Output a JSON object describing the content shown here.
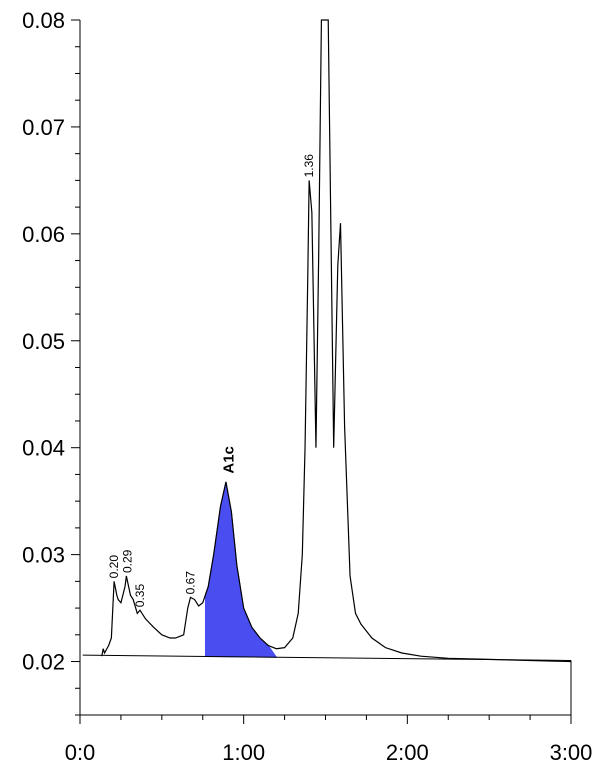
{
  "chart_data": {
    "type": "line",
    "title": "",
    "xlabel": "",
    "ylabel": "",
    "xlim_sec": [
      0,
      180
    ],
    "ylim": [
      0.015,
      0.08
    ],
    "x_ticks": [
      {
        "sec": 0,
        "label": "0:0"
      },
      {
        "sec": 60,
        "label": "1:00"
      },
      {
        "sec": 120,
        "label": "2:00"
      },
      {
        "sec": 180,
        "label": "3:00"
      }
    ],
    "y_ticks": [
      {
        "value": 0.02,
        "label": "0.02"
      },
      {
        "value": 0.03,
        "label": "0.03"
      },
      {
        "value": 0.04,
        "label": "0.04"
      },
      {
        "value": 0.05,
        "label": "0.05"
      },
      {
        "value": 0.06,
        "label": "0.06"
      },
      {
        "value": 0.07,
        "label": "0.07"
      },
      {
        "value": 0.08,
        "label": "0.08"
      }
    ],
    "baseline": [
      [
        1,
        0.0206
      ],
      [
        180,
        0.0201
      ]
    ],
    "series": [
      {
        "points": [
          [
            8,
            0.0205
          ],
          [
            8.5,
            0.0212
          ],
          [
            9,
            0.0208
          ],
          [
            10.5,
            0.0215
          ],
          [
            11.5,
            0.0222
          ],
          [
            12.5,
            0.0275
          ],
          [
            13.5,
            0.0262
          ],
          [
            14,
            0.0258
          ],
          [
            15,
            0.0255
          ],
          [
            16.5,
            0.027
          ],
          [
            17,
            0.028
          ],
          [
            18.5,
            0.0262
          ],
          [
            19.5,
            0.0258
          ],
          [
            21,
            0.0245
          ],
          [
            22,
            0.0248
          ],
          [
            24,
            0.024
          ],
          [
            27,
            0.0232
          ],
          [
            30,
            0.0225
          ],
          [
            33,
            0.0222
          ],
          [
            35,
            0.0222
          ],
          [
            38,
            0.0225
          ],
          [
            39.5,
            0.025
          ],
          [
            40.5,
            0.026
          ],
          [
            42,
            0.0258
          ],
          [
            43.5,
            0.0252
          ],
          [
            45,
            0.0255
          ],
          [
            47,
            0.027
          ],
          [
            49,
            0.03
          ],
          [
            51.5,
            0.0345
          ],
          [
            53.5,
            0.0368
          ],
          [
            55.5,
            0.034
          ],
          [
            57.5,
            0.029
          ],
          [
            60,
            0.025
          ],
          [
            63,
            0.0232
          ],
          [
            66,
            0.0222
          ],
          [
            69,
            0.0215
          ],
          [
            72,
            0.0212
          ],
          [
            75,
            0.0213
          ],
          [
            78,
            0.0222
          ],
          [
            80,
            0.0245
          ],
          [
            81.5,
            0.03
          ],
          [
            82.5,
            0.04
          ],
          [
            83.5,
            0.056
          ],
          [
            84,
            0.065
          ],
          [
            85,
            0.062
          ],
          [
            86.5,
            0.04
          ],
          [
            87.5,
            0.058
          ],
          [
            88.5,
            0.08
          ],
          [
            91,
            0.08
          ],
          [
            92,
            0.06
          ],
          [
            93,
            0.04
          ],
          [
            94.5,
            0.057
          ],
          [
            95.5,
            0.061
          ],
          [
            97,
            0.042
          ],
          [
            99,
            0.028
          ],
          [
            101,
            0.0245
          ],
          [
            103,
            0.0235
          ],
          [
            107,
            0.0222
          ],
          [
            112,
            0.0213
          ],
          [
            118,
            0.0208
          ],
          [
            125,
            0.0205
          ],
          [
            135,
            0.0203
          ],
          [
            150,
            0.0202
          ],
          [
            165,
            0.0201
          ],
          [
            180,
            0.02
          ]
        ]
      }
    ],
    "shaded_peak": {
      "label": "A1c",
      "start_sec": 46,
      "end_sec": 72,
      "fill": "#4a4ef0"
    },
    "peak_labels": [
      {
        "text": "0.20",
        "x_sec": 12.5,
        "y": 0.0275
      },
      {
        "text": "0.29",
        "x_sec": 17.5,
        "y": 0.028
      },
      {
        "text": "0.35",
        "x_sec": 22,
        "y": 0.0248
      },
      {
        "text": "0.67",
        "x_sec": 40.5,
        "y": 0.026
      },
      {
        "text": "1.36",
        "x_sec": 84,
        "y": 0.065
      }
    ],
    "colors": {
      "line": "#000000",
      "axis": "#000000"
    }
  }
}
